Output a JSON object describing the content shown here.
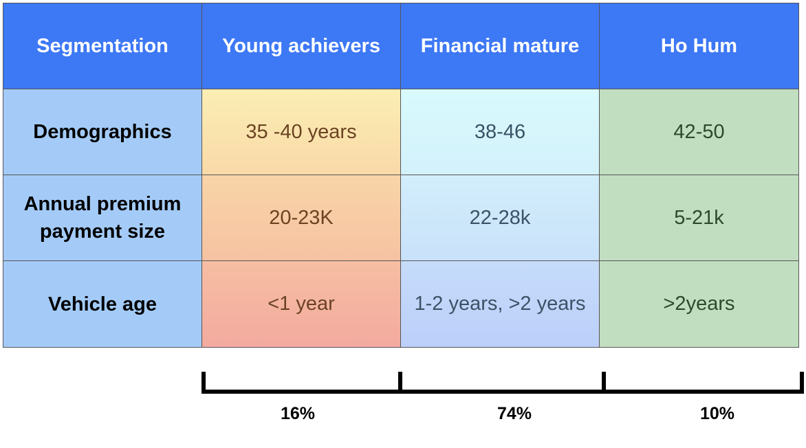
{
  "table": {
    "headers": [
      "Segmentation",
      "Young achievers",
      "Financial mature",
      "Ho Hum"
    ],
    "rows": [
      {
        "label": "Demographics",
        "values": [
          "35 -40 years",
          "38-46",
          "42-50"
        ]
      },
      {
        "label": "Annual premium payment size",
        "values": [
          "20-23K",
          "22-28k",
          "5-21k"
        ]
      },
      {
        "label": "Vehicle age",
        "values": [
          "<1 year",
          "1-2 years, >2 years",
          ">2years"
        ]
      }
    ]
  },
  "shares": [
    "16%",
    "74%",
    "10%"
  ],
  "colors": {
    "header_bg": "#3d78f5",
    "row_label_bg": "#a4cbf8",
    "young_achievers": "#f9d5a8",
    "financial_mature": "#d2eefb",
    "ho_hum": "#c2dec0"
  }
}
